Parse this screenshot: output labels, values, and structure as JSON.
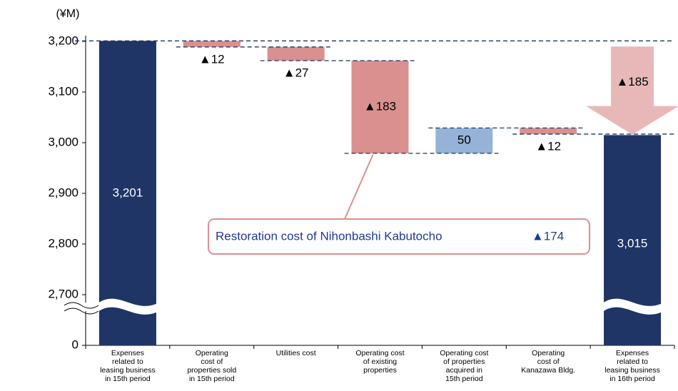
{
  "chart_data": {
    "type": "waterfall",
    "unit": "(¥M)",
    "categories": [
      "Expenses\nrelated to\nleasing business\nin 15th period",
      "Operating\ncost of\nproperties sold\nin 15th period",
      "Utilities cost",
      "Operating cost\nof existing\nproperties",
      "Operating cost\nof properties\nacquired in\n15th period",
      "Operating\ncost of\nKanazawa Bldg.",
      "Expenses\nrelated to\nleasing business\nin 16th period"
    ],
    "values": [
      3201,
      -12,
      -27,
      -183,
      50,
      -12,
      3015
    ],
    "value_labels": [
      "3,201",
      "▲12",
      "▲27",
      "▲183",
      "50",
      "▲12",
      "3,015"
    ],
    "measures": [
      "total",
      "relative",
      "relative",
      "relative",
      "relative",
      "relative",
      "total"
    ],
    "colors": {
      "total": "#1f3566",
      "decrease": "#d9908f",
      "increase": "#95b3d7"
    },
    "change": {
      "value": -185,
      "label": "▲185"
    },
    "annotation": {
      "text": "Restoration cost of Nihonbashi Kabutocho",
      "amount": "▲174"
    },
    "ylim": [
      2600,
      3200
    ],
    "yticks": [
      {
        "value": 0,
        "label": "0"
      },
      {
        "value": 2700,
        "label": "2,700"
      },
      {
        "value": 2800,
        "label": "2,800"
      },
      {
        "value": 2900,
        "label": "2,900"
      },
      {
        "value": 3000,
        "label": "3,000"
      },
      {
        "value": 3100,
        "label": "3,100"
      },
      {
        "value": 3200,
        "label": "3,200"
      }
    ],
    "axis_break": true
  }
}
